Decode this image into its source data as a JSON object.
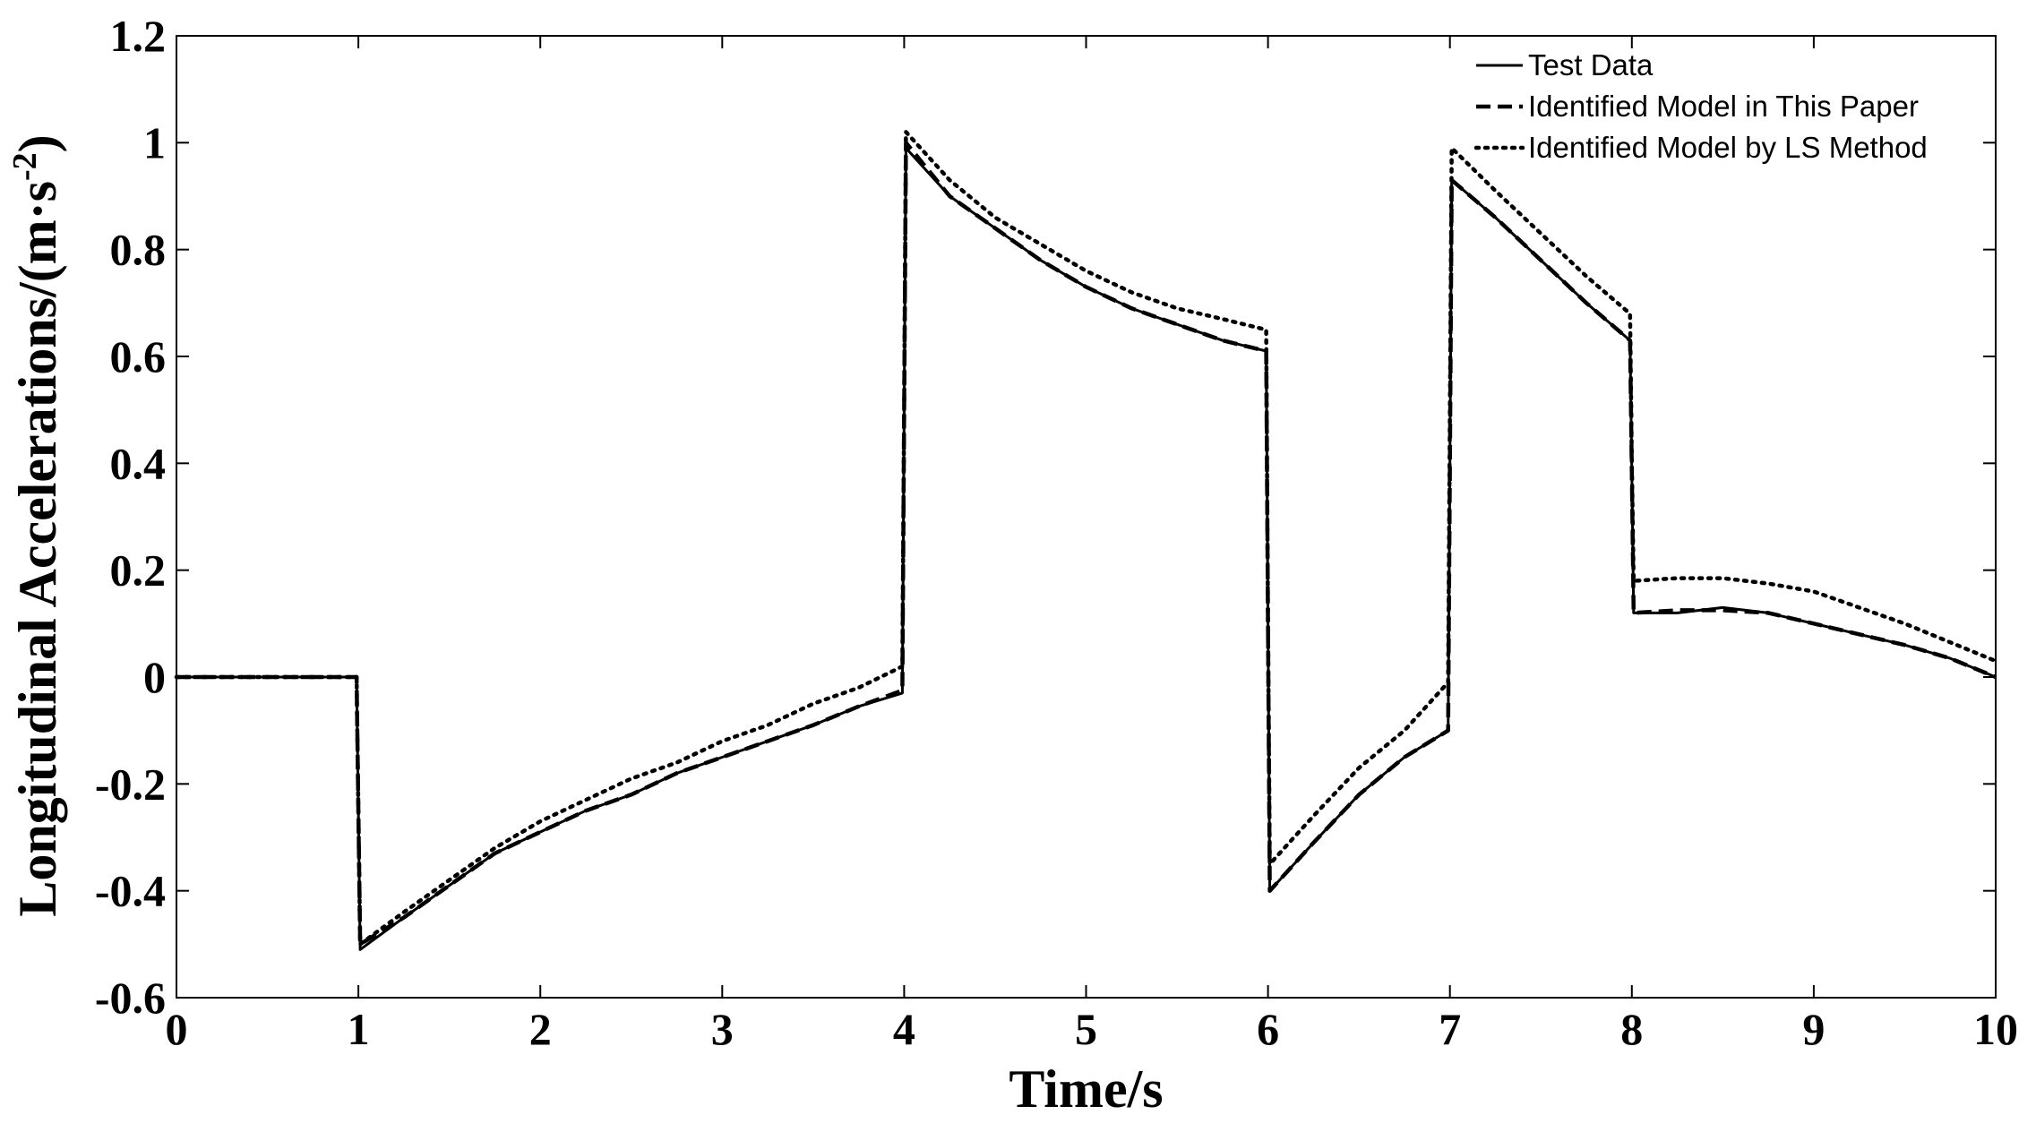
{
  "chart_data": {
    "type": "line",
    "xlabel": "Time/s",
    "ylabel": "Longitudinal Accelerations/(m·s",
    "ylabel_sup": "-2",
    "ylabel_close": ")",
    "xlim": [
      0,
      10
    ],
    "ylim": [
      -0.6,
      1.2
    ],
    "x_ticks": [
      0,
      1,
      2,
      3,
      4,
      5,
      6,
      7,
      8,
      9,
      10
    ],
    "x_tick_labels": [
      "0",
      "1",
      "2",
      "3",
      "4",
      "5",
      "6",
      "7",
      "8",
      "9",
      "10"
    ],
    "y_ticks": [
      -0.6,
      -0.4,
      -0.2,
      0,
      0.2,
      0.4,
      0.6,
      0.8,
      1,
      1.2
    ],
    "y_tick_labels": [
      "-0.6",
      "-0.4",
      "-0.2",
      "0",
      "0.2",
      "0.4",
      "0.6",
      "0.8",
      "1",
      "1.2"
    ],
    "grid": false,
    "legend_position": "top-right",
    "series": [
      {
        "name": "Test Data",
        "style": "solid",
        "color": "#000000",
        "x": [
          0,
          0.5,
          0.99,
          1.0,
          1.01,
          1.25,
          1.5,
          1.75,
          2.0,
          2.25,
          2.5,
          2.75,
          3.0,
          3.25,
          3.5,
          3.75,
          3.99,
          4.0,
          4.01,
          4.25,
          4.5,
          4.75,
          5.0,
          5.25,
          5.5,
          5.75,
          5.99,
          6.0,
          6.01,
          6.25,
          6.5,
          6.75,
          6.99,
          7.0,
          7.01,
          7.25,
          7.5,
          7.75,
          7.99,
          8.0,
          8.01,
          8.25,
          8.5,
          8.75,
          9.0,
          9.25,
          9.5,
          9.75,
          10.0
        ],
        "y": [
          0,
          0,
          0,
          -0.25,
          -0.51,
          -0.45,
          -0.39,
          -0.33,
          -0.29,
          -0.25,
          -0.22,
          -0.18,
          -0.15,
          -0.12,
          -0.09,
          -0.055,
          -0.03,
          0.5,
          0.99,
          0.9,
          0.84,
          0.78,
          0.73,
          0.69,
          0.66,
          0.63,
          0.61,
          0.1,
          -0.4,
          -0.31,
          -0.22,
          -0.15,
          -0.1,
          0.4,
          0.93,
          0.86,
          0.78,
          0.7,
          0.63,
          0.38,
          0.12,
          0.12,
          0.13,
          0.12,
          0.1,
          0.08,
          0.06,
          0.035,
          0.0
        ]
      },
      {
        "name": "Identified Model in This Paper",
        "style": "dashed",
        "color": "#000000",
        "x": [
          0,
          0.99,
          1.0,
          1.01,
          1.25,
          1.5,
          1.75,
          2.0,
          2.25,
          2.5,
          2.75,
          3.0,
          3.25,
          3.5,
          3.75,
          3.99,
          4.0,
          4.01,
          4.25,
          4.5,
          4.75,
          5.0,
          5.25,
          5.5,
          5.75,
          5.99,
          6.0,
          6.01,
          6.25,
          6.5,
          6.75,
          6.99,
          7.0,
          7.01,
          7.25,
          7.5,
          7.75,
          7.99,
          8.0,
          8.01,
          8.25,
          8.5,
          8.75,
          9.0,
          9.25,
          9.5,
          9.75,
          10.0
        ],
        "y": [
          0,
          0,
          -0.25,
          -0.5,
          -0.45,
          -0.39,
          -0.33,
          -0.29,
          -0.25,
          -0.22,
          -0.18,
          -0.15,
          -0.12,
          -0.09,
          -0.055,
          -0.025,
          0.5,
          1.0,
          0.9,
          0.84,
          0.78,
          0.73,
          0.69,
          0.66,
          0.63,
          0.61,
          0.1,
          -0.4,
          -0.31,
          -0.22,
          -0.15,
          -0.1,
          0.4,
          0.93,
          0.86,
          0.78,
          0.7,
          0.63,
          0.38,
          0.12,
          0.125,
          0.125,
          0.12,
          0.1,
          0.08,
          0.06,
          0.035,
          0.0
        ]
      },
      {
        "name": "Identified Model by LS Method",
        "style": "dotted",
        "color": "#000000",
        "x": [
          0,
          0.99,
          1.0,
          1.01,
          1.25,
          1.5,
          1.75,
          2.0,
          2.25,
          2.5,
          2.75,
          3.0,
          3.25,
          3.5,
          3.75,
          3.99,
          4.0,
          4.01,
          4.25,
          4.5,
          4.75,
          5.0,
          5.25,
          5.5,
          5.75,
          5.99,
          6.0,
          6.01,
          6.25,
          6.5,
          6.75,
          6.99,
          7.0,
          7.01,
          7.25,
          7.5,
          7.75,
          7.99,
          8.0,
          8.01,
          8.25,
          8.5,
          8.75,
          9.0,
          9.25,
          9.5,
          9.75,
          10.0
        ],
        "y": [
          0,
          0,
          -0.25,
          -0.5,
          -0.44,
          -0.38,
          -0.32,
          -0.27,
          -0.23,
          -0.19,
          -0.16,
          -0.12,
          -0.09,
          -0.05,
          -0.02,
          0.02,
          0.5,
          1.02,
          0.93,
          0.86,
          0.81,
          0.76,
          0.72,
          0.69,
          0.67,
          0.65,
          0.1,
          -0.35,
          -0.26,
          -0.17,
          -0.1,
          -0.01,
          0.5,
          0.99,
          0.91,
          0.83,
          0.75,
          0.68,
          0.4,
          0.18,
          0.185,
          0.185,
          0.175,
          0.16,
          0.13,
          0.1,
          0.065,
          0.03
        ]
      }
    ]
  }
}
